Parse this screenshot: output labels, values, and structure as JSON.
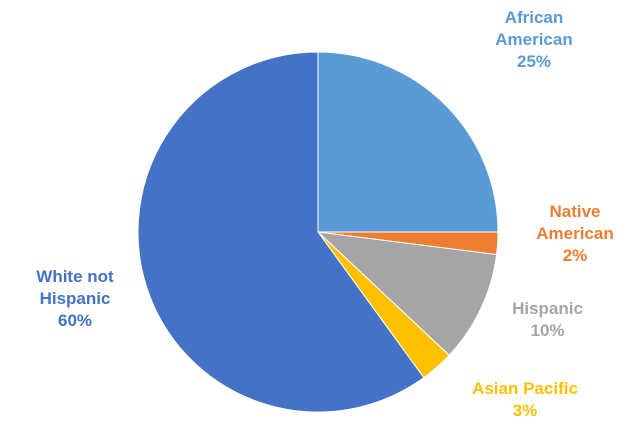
{
  "chart_data": {
    "type": "pie",
    "categories": [
      "African American",
      "Native American",
      "Hispanic",
      "Asian Pacific",
      "White not Hispanic"
    ],
    "values": [
      25,
      2,
      10,
      3,
      60
    ],
    "value_labels": [
      "25%",
      "2%",
      "10%",
      "3%",
      "60%"
    ],
    "colors": [
      "#5b9bd5",
      "#ed7d31",
      "#a5a5a5",
      "#ffc000",
      "#4472c4"
    ]
  }
}
